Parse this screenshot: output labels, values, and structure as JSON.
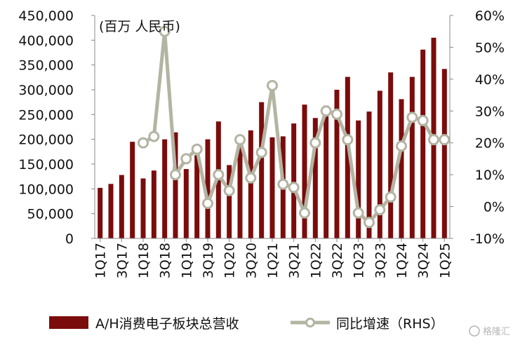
{
  "chart_data": {
    "type": "bar",
    "unit_label": "(百万 人民币)",
    "categories": [
      "1Q17",
      "2Q17",
      "3Q17",
      "4Q17",
      "1Q18",
      "2Q18",
      "3Q18",
      "4Q18",
      "1Q19",
      "2Q19",
      "3Q19",
      "4Q19",
      "1Q20",
      "2Q20",
      "3Q20",
      "4Q20",
      "1Q21",
      "2Q21",
      "3Q21",
      "4Q21",
      "1Q22",
      "2Q22",
      "3Q22",
      "4Q22",
      "1Q23",
      "2Q23",
      "3Q23",
      "4Q23",
      "1Q24",
      "2Q24",
      "3Q24",
      "4Q24",
      "1Q25"
    ],
    "x_tick_labels": [
      "1Q17",
      "3Q17",
      "1Q18",
      "3Q18",
      "1Q19",
      "3Q19",
      "1Q20",
      "3Q20",
      "1Q21",
      "3Q21",
      "1Q22",
      "3Q22",
      "1Q23",
      "3Q23",
      "1Q24",
      "3Q24",
      "1Q25"
    ],
    "series": [
      {
        "name": "A/H消费电子板块总营收",
        "kind": "bar",
        "axis": "left",
        "color": "#7b0c0c",
        "values": [
          102000,
          110000,
          128000,
          195000,
          121000,
          137000,
          200000,
          214000,
          140000,
          168000,
          200000,
          236000,
          148000,
          194000,
          218000,
          275000,
          204000,
          206000,
          232000,
          270000,
          243000,
          268000,
          300000,
          326000,
          238000,
          256000,
          298000,
          335000,
          281000,
          326000,
          381000,
          405000,
          342000
        ]
      },
      {
        "name": "同比增速（RHS）",
        "kind": "line",
        "axis": "right",
        "color": "#b4b4a3",
        "marker_fill": "#ffffff",
        "values": [
          null,
          null,
          null,
          null,
          20,
          22,
          55,
          10,
          15,
          18,
          1,
          10,
          5,
          21,
          9,
          17,
          38,
          7,
          6,
          -2,
          20,
          30,
          29,
          21,
          -2,
          -5,
          -1,
          3,
          19,
          28,
          27,
          21,
          21
        ]
      }
    ],
    "left_axis": {
      "ylim": [
        0,
        450000
      ],
      "ticks": [
        "0",
        "50,000",
        "100,000",
        "150,000",
        "200,000",
        "250,000",
        "300,000",
        "350,000",
        "400,000",
        "450,000"
      ]
    },
    "right_axis": {
      "ylim": [
        -10,
        60
      ],
      "ticks": [
        "-10%",
        "0%",
        "10%",
        "20%",
        "30%",
        "40%",
        "50%",
        "60%"
      ]
    },
    "legend": {
      "placement": "bottom"
    }
  },
  "watermark": "格隆汇"
}
